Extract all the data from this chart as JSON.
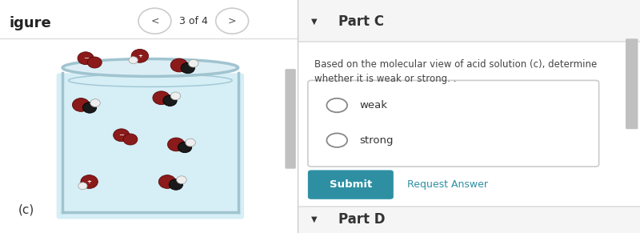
{
  "left_bg": "#f0f0f0",
  "right_bg": "#ffffff",
  "left_label": "igure",
  "nav_text": "3 of 4",
  "label_c": "(c)",
  "part_c_title": "Part C",
  "question_text_line1": "Based on the molecular view of acid solution (c), determine",
  "question_text_line2": "whether it is weak or strong. .",
  "option1": "weak",
  "option2": "strong",
  "submit_text": "Submit",
  "request_text": "Request Answer",
  "part_d_title": "Part D",
  "submit_bg": "#2e8fa3",
  "submit_text_color": "#ffffff",
  "request_color": "#2e8fa3",
  "part_title_color": "#333333",
  "question_color": "#444444",
  "option_color": "#333333",
  "divider_color": "#dddddd",
  "beaker_fill": "#d6eef5",
  "beaker_border": "#a0c4d0",
  "option_box_bg": "#ffffff",
  "option_box_border": "#cccccc",
  "header_bg": "#f5f5f5",
  "part_d_bg": "#f5f5f5",
  "scrollbar_color": "#c0c0c0",
  "fig_width": 8.0,
  "fig_height": 2.91
}
